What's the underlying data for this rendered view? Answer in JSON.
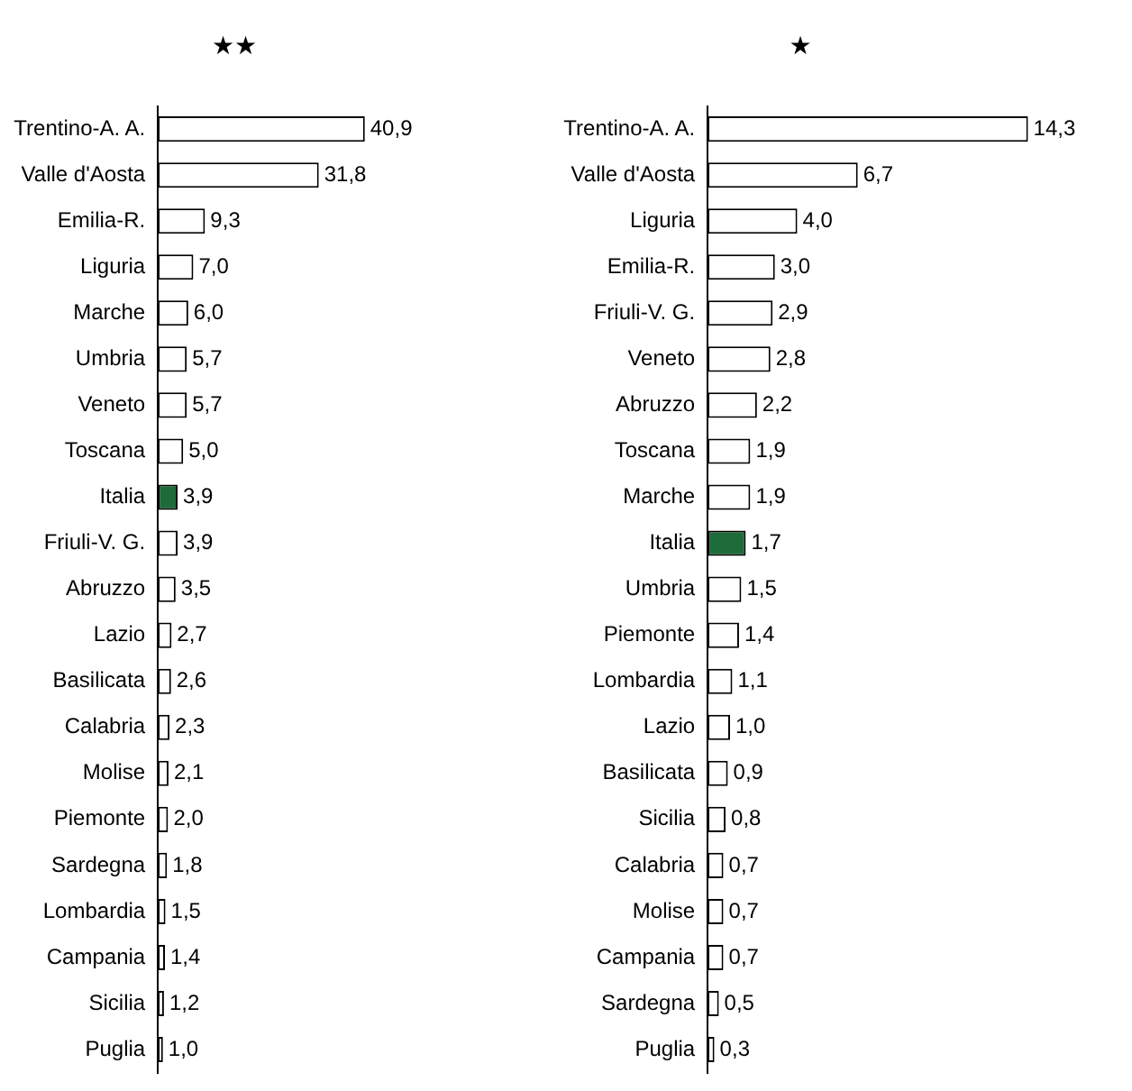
{
  "chart_data": [
    {
      "type": "bar",
      "orientation": "horizontal",
      "title": "★★",
      "categories": [
        "Trentino-A. A.",
        "Valle d'Aosta",
        "Emilia-R.",
        "Liguria",
        "Marche",
        "Umbria",
        "Veneto",
        "Toscana",
        "Italia",
        "Friuli-V. G.",
        "Abruzzo",
        "Lazio",
        "Basilicata",
        "Calabria",
        "Molise",
        "Piemonte",
        "Sardegna",
        "Lombardia",
        "Campania",
        "Sicilia",
        "Puglia"
      ],
      "values": [
        40.9,
        31.8,
        9.3,
        7.0,
        6.0,
        5.7,
        5.7,
        5.0,
        3.9,
        3.9,
        3.5,
        2.7,
        2.6,
        2.3,
        2.1,
        2.0,
        1.8,
        1.5,
        1.4,
        1.2,
        1.0
      ],
      "value_labels": [
        "40,9",
        "31,8",
        "9,3",
        "7,0",
        "6,0",
        "5,7",
        "5,7",
        "5,0",
        "3,9",
        "3,9",
        "3,5",
        "2,7",
        "2,6",
        "2,3",
        "2,1",
        "2,0",
        "1,8",
        "1,5",
        "1,4",
        "1,2",
        "1,0"
      ],
      "colors": [
        "#ffffff",
        "#ffffff",
        "#ffffff",
        "#ffffff",
        "#ffffff",
        "#ffffff",
        "#ffffff",
        "#ffffff",
        "#1e6b3a",
        "#ffffff",
        "#ffffff",
        "#ffffff",
        "#ffffff",
        "#ffffff",
        "#ffffff",
        "#ffffff",
        "#ffffff",
        "#ffffff",
        "#ffffff",
        "#ffffff",
        "#ffffff"
      ],
      "tick_labels": "y",
      "grid": false,
      "legend": false
    },
    {
      "type": "bar",
      "orientation": "horizontal",
      "title": "★",
      "categories": [
        "Trentino-A. A.",
        "Valle d'Aosta",
        "Liguria",
        "Emilia-R.",
        "Friuli-V. G.",
        "Veneto",
        "Abruzzo",
        "Toscana",
        "Marche",
        "Italia",
        "Umbria",
        "Piemonte",
        "Lombardia",
        "Lazio",
        "Basilicata",
        "Sicilia",
        "Calabria",
        "Molise",
        "Campania",
        "Sardegna",
        "Puglia"
      ],
      "values": [
        14.3,
        6.7,
        4.0,
        3.0,
        2.9,
        2.8,
        2.2,
        1.9,
        1.9,
        1.7,
        1.5,
        1.4,
        1.1,
        1.0,
        0.9,
        0.8,
        0.7,
        0.7,
        0.7,
        0.5,
        0.3
      ],
      "value_labels": [
        "14,3",
        "6,7",
        "4,0",
        "3,0",
        "2,9",
        "2,8",
        "2,2",
        "1,9",
        "1,9",
        "1,7",
        "1,5",
        "1,4",
        "1,1",
        "1,0",
        "0,9",
        "0,8",
        "0,7",
        "0,7",
        "0,7",
        "0,5",
        "0,3"
      ],
      "colors": [
        "#ffffff",
        "#ffffff",
        "#ffffff",
        "#ffffff",
        "#ffffff",
        "#ffffff",
        "#ffffff",
        "#ffffff",
        "#ffffff",
        "#1e6b3a",
        "#ffffff",
        "#ffffff",
        "#ffffff",
        "#ffffff",
        "#ffffff",
        "#ffffff",
        "#ffffff",
        "#ffffff",
        "#ffffff",
        "#ffffff",
        "#ffffff"
      ],
      "tick_labels": "y",
      "grid": false,
      "legend": false
    }
  ]
}
